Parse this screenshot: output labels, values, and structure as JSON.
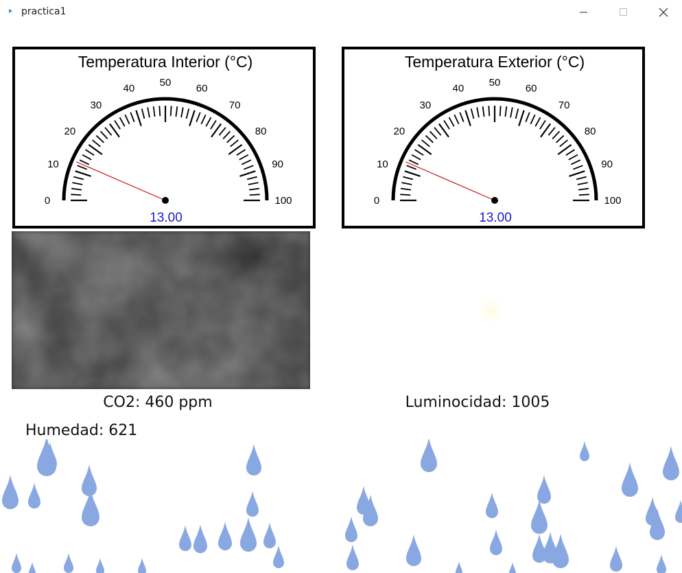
{
  "window": {
    "title": "practica1"
  },
  "gauges": [
    {
      "id": "interior",
      "title": "Temperatura Interior (°C)",
      "min": 0,
      "max": 100,
      "labels": [
        "0",
        "10",
        "20",
        "30",
        "40",
        "50",
        "60",
        "70",
        "80",
        "90",
        "100"
      ],
      "value": 13.0,
      "value_text": "13.00",
      "needle_color": "#cc1111",
      "value_color": "#1a1ad0"
    },
    {
      "id": "exterior",
      "title": "Temperatura Exterior (°C)",
      "min": 0,
      "max": 100,
      "labels": [
        "0",
        "10",
        "20",
        "30",
        "40",
        "50",
        "60",
        "70",
        "80",
        "90",
        "100"
      ],
      "value": 13.0,
      "value_text": "13.00",
      "needle_color": "#cc1111",
      "value_color": "#1a1ad0"
    }
  ],
  "readings": {
    "co2": "CO2: 460 ppm",
    "luminosidad": "Luminocidad: 1005",
    "humedad": "Humedad: 621"
  },
  "colors": {
    "rain": "#89a8e2",
    "cloud_dark": "#2c2c2c",
    "cloud_light": "#8a8a8a"
  }
}
